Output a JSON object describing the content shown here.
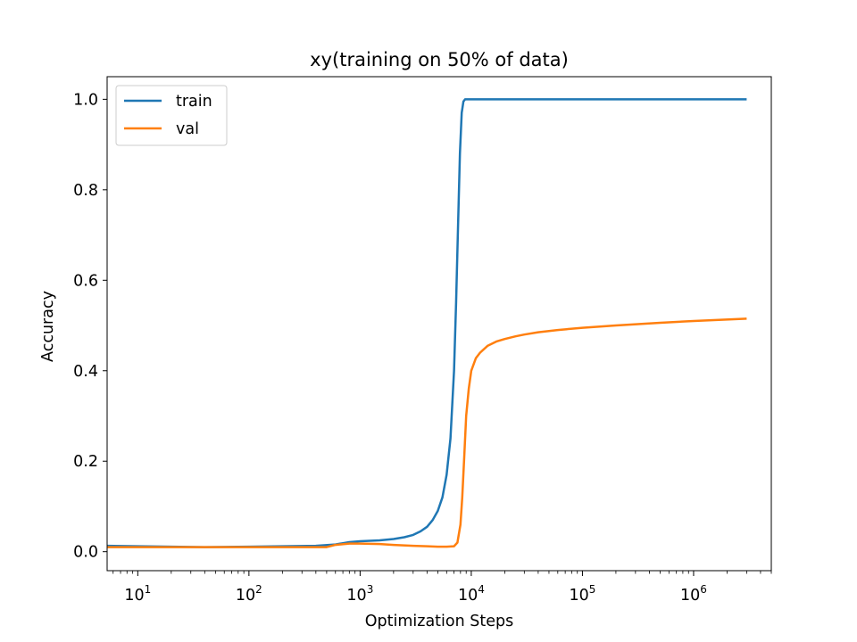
{
  "chart_data": {
    "type": "line",
    "title": "xy(training on 50% of data)",
    "xlabel": "Optimization Steps",
    "ylabel": "Accuracy",
    "xscale": "log",
    "xlim": [
      5.3,
      5000000
    ],
    "ylim": [
      -0.042,
      1.05
    ],
    "grid": false,
    "legend_position": "top-left",
    "x_ticks": [
      {
        "value": 10,
        "base": "10",
        "exp": "1"
      },
      {
        "value": 100,
        "base": "10",
        "exp": "2"
      },
      {
        "value": 1000,
        "base": "10",
        "exp": "3"
      },
      {
        "value": 10000,
        "base": "10",
        "exp": "4"
      },
      {
        "value": 100000,
        "base": "10",
        "exp": "5"
      },
      {
        "value": 1000000,
        "base": "10",
        "exp": "6"
      }
    ],
    "y_ticks": [
      {
        "value": 0.0,
        "label": "0.0"
      },
      {
        "value": 0.2,
        "label": "0.2"
      },
      {
        "value": 0.4,
        "label": "0.4"
      },
      {
        "value": 0.6,
        "label": "0.6"
      },
      {
        "value": 0.8,
        "label": "0.8"
      },
      {
        "value": 1.0,
        "label": "1.0"
      }
    ],
    "series": [
      {
        "name": "train",
        "color": "#1f77b4",
        "x": [
          5.3,
          10,
          20,
          40,
          100,
          200,
          400,
          600,
          800,
          1000,
          1500,
          2000,
          2500,
          3000,
          3500,
          4000,
          4500,
          5000,
          5500,
          6000,
          6500,
          7000,
          7300,
          7600,
          7900,
          8200,
          8500,
          8800,
          9500,
          12000,
          100000,
          1000000,
          3000000
        ],
        "values": [
          0.013,
          0.012,
          0.011,
          0.01,
          0.011,
          0.012,
          0.013,
          0.016,
          0.021,
          0.023,
          0.025,
          0.028,
          0.032,
          0.037,
          0.045,
          0.055,
          0.07,
          0.09,
          0.12,
          0.17,
          0.25,
          0.4,
          0.55,
          0.72,
          0.88,
          0.97,
          0.995,
          1.0,
          1.0,
          1.0,
          1.0,
          1.0,
          1.0
        ]
      },
      {
        "name": "val",
        "color": "#ff7f0e",
        "x": [
          5.3,
          10,
          40,
          100,
          300,
          500,
          600,
          800,
          1000,
          1500,
          2000,
          3000,
          4000,
          5000,
          6000,
          7000,
          7500,
          8000,
          8300,
          8600,
          9000,
          9500,
          10000,
          11000,
          12000,
          14000,
          17000,
          20000,
          25000,
          30000,
          40000,
          60000,
          100000,
          200000,
          500000,
          1000000,
          3000000
        ],
        "values": [
          0.01,
          0.01,
          0.01,
          0.01,
          0.01,
          0.01,
          0.015,
          0.018,
          0.018,
          0.017,
          0.015,
          0.013,
          0.012,
          0.011,
          0.011,
          0.012,
          0.02,
          0.06,
          0.12,
          0.2,
          0.3,
          0.36,
          0.4,
          0.428,
          0.44,
          0.455,
          0.465,
          0.47,
          0.476,
          0.48,
          0.485,
          0.49,
          0.495,
          0.5,
          0.506,
          0.51,
          0.515
        ]
      }
    ]
  }
}
